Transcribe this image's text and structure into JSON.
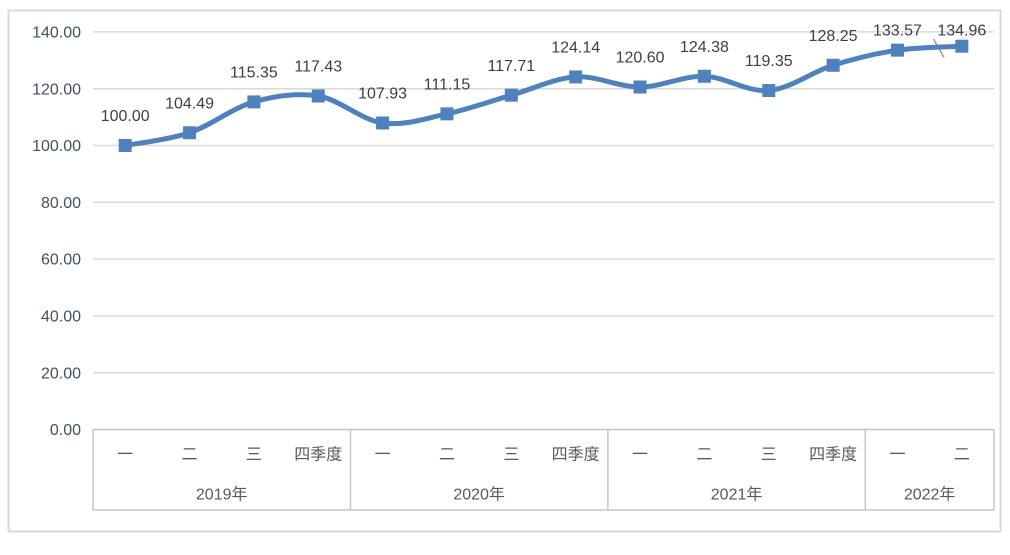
{
  "chart_data": {
    "type": "line",
    "title": "",
    "smooth": true,
    "marker": "square",
    "grid": true,
    "ylim": [
      0,
      140
    ],
    "y_tick_step": 20,
    "y_ticks": [
      "140.00",
      "120.00",
      "100.00",
      "80.00",
      "60.00",
      "40.00",
      "20.00",
      "0.00"
    ],
    "x_groups": [
      {
        "year": "2019年",
        "quarters": [
          "一",
          "二",
          "三",
          "四季度"
        ]
      },
      {
        "year": "2020年",
        "quarters": [
          "一",
          "二",
          "三",
          "四季度"
        ]
      },
      {
        "year": "2021年",
        "quarters": [
          "一",
          "二",
          "三",
          "四季度"
        ]
      },
      {
        "year": "2022年",
        "quarters": [
          "一",
          "二"
        ]
      }
    ],
    "series": [
      {
        "name": "index",
        "values": [
          100.0,
          104.49,
          115.35,
          117.43,
          107.93,
          111.15,
          117.71,
          124.14,
          120.6,
          124.38,
          119.35,
          128.25,
          133.57,
          134.96
        ],
        "data_labels": [
          "100.00",
          "104.49",
          "115.35",
          "117.43",
          "107.93",
          "111.15",
          "117.71",
          "124.14",
          "120.60",
          "124.38",
          "119.35",
          "128.25",
          "133.57",
          "134.96"
        ]
      }
    ],
    "colors": {
      "series_line": "#4f81bd",
      "marker_fill": "#4f81bd",
      "gridline": "#d9d9d9",
      "chart_border": "#d9d9d9",
      "axis_table_border": "#c6c6c6",
      "y_tick_text": "#454e5f",
      "data_label_text": "#3f3f3f",
      "category_text": "#595959",
      "leader_line": "#9b9b9b",
      "background": "#ffffff"
    }
  }
}
